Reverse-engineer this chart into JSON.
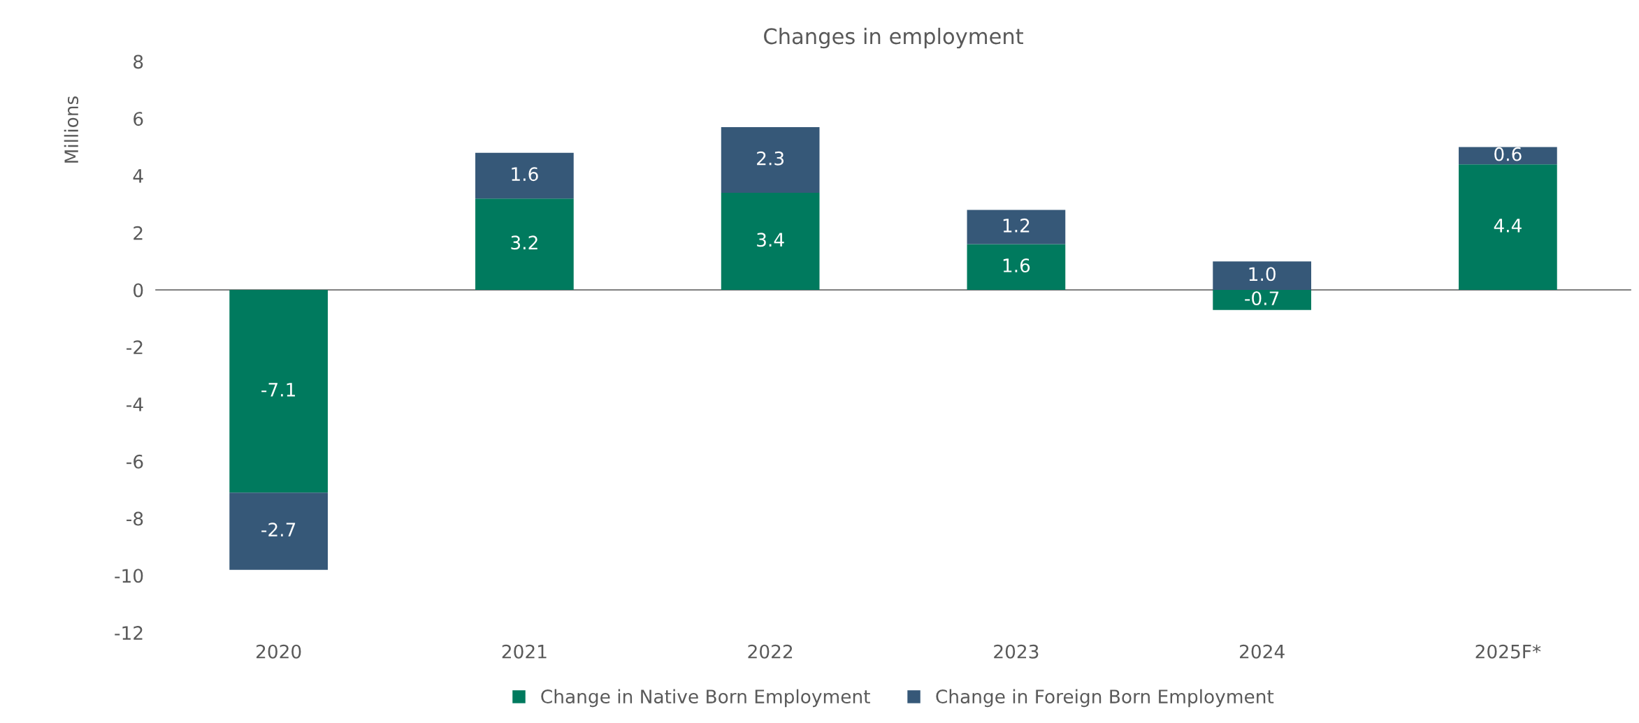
{
  "chart_data": {
    "type": "bar",
    "title": "Changes in employment",
    "ylabel": "Millions",
    "categories": [
      "2020",
      "2021",
      "2022",
      "2023",
      "2024",
      "2025F*"
    ],
    "series": [
      {
        "name": "Change in Native Born Employment",
        "color": "#007a5e",
        "values": [
          -7.1,
          3.2,
          3.4,
          1.6,
          -0.7,
          4.4
        ],
        "value_labels": [
          "-7.1",
          "3.2",
          "3.4",
          "1.6",
          "-0.7",
          "4.4"
        ]
      },
      {
        "name": "Change in Foreign Born Employment",
        "color": "#365878",
        "values": [
          -2.7,
          1.6,
          2.3,
          1.2,
          1.0,
          0.6
        ],
        "value_labels": [
          "-2.7",
          "1.6",
          "2.3",
          "1.2",
          "1.0",
          "0.6"
        ]
      }
    ],
    "stacked": true,
    "ylim": [
      -12,
      8
    ],
    "yticks": [
      -12,
      -10,
      -8,
      -6,
      -4,
      -2,
      0,
      2,
      4,
      6,
      8
    ],
    "legend": "bottom"
  }
}
